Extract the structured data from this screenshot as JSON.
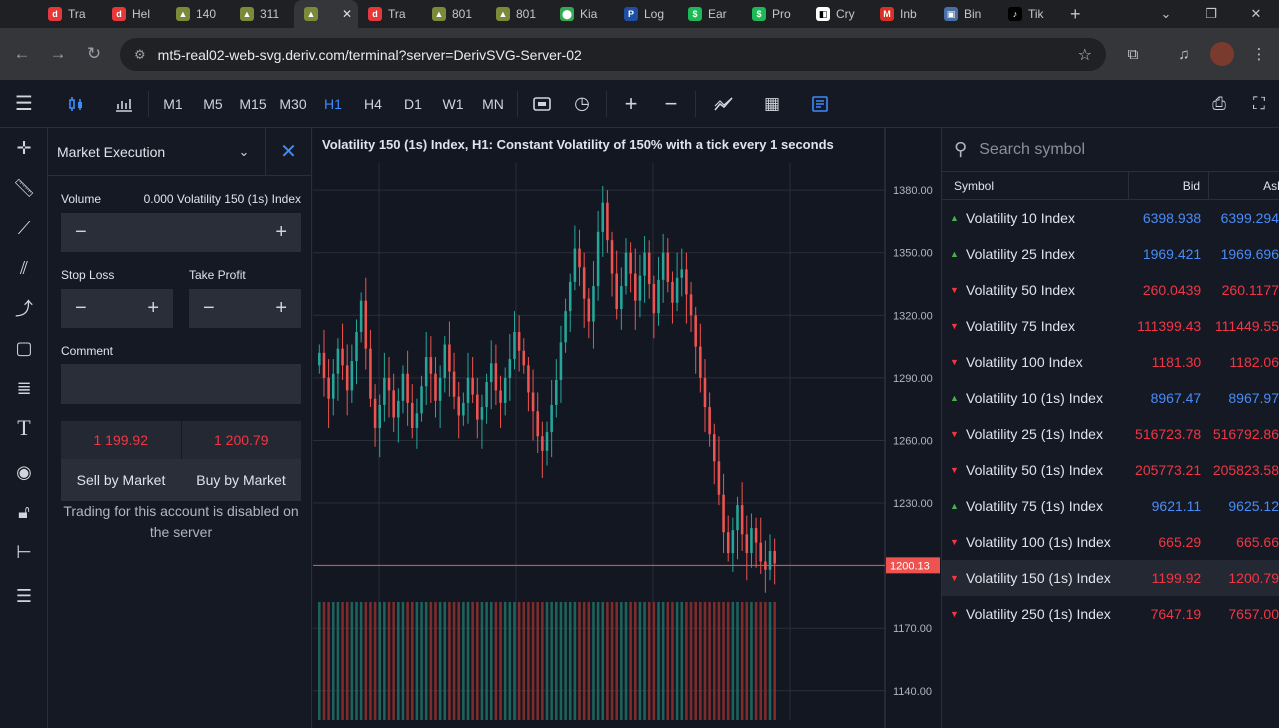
{
  "browser": {
    "tabs": [
      {
        "label": "Tra",
        "color": "#e5383b",
        "glyph": "d"
      },
      {
        "label": "Hel",
        "color": "#e5383b",
        "glyph": "d"
      },
      {
        "label": "140",
        "color": "#7a8a3a",
        "glyph": "▲"
      },
      {
        "label": "311",
        "color": "#7a8a3a",
        "glyph": "▲"
      },
      {
        "label": "",
        "color": "#7a8a3a",
        "glyph": "▲",
        "active": true
      },
      {
        "label": "Tra",
        "color": "#e5383b",
        "glyph": "d"
      },
      {
        "label": "801",
        "color": "#7a8a3a",
        "glyph": "▲"
      },
      {
        "label": "801",
        "color": "#7a8a3a",
        "glyph": "▲"
      },
      {
        "label": "Kia",
        "color": "#34a853",
        "glyph": "⬤"
      },
      {
        "label": "Log",
        "color": "#1e4fa3",
        "glyph": "P"
      },
      {
        "label": "Ear",
        "color": "#1db954",
        "glyph": "$"
      },
      {
        "label": "Pro",
        "color": "#1db954",
        "glyph": "$"
      },
      {
        "label": "Cry",
        "color": "#ffffff",
        "glyph": "◧"
      },
      {
        "label": "Inb",
        "color": "#d93025",
        "glyph": "M"
      },
      {
        "label": "Bin",
        "color": "#4a6fa5",
        "glyph": "▣"
      },
      {
        "label": "Tik",
        "color": "#000000",
        "glyph": "♪"
      }
    ],
    "url": "mt5-real02-web-svg.deriv.com/terminal?server=DerivSVG-Server-02"
  },
  "toolbar": {
    "timeframes": [
      "M1",
      "M5",
      "M15",
      "M30",
      "H1",
      "H4",
      "D1",
      "W1",
      "MN"
    ],
    "active_timeframe": "H1"
  },
  "order_panel": {
    "title": "Market Execution",
    "volume_label": "Volume",
    "volume_value": "0.000 Volatility 150 (1s) Index",
    "stop_loss_label": "Stop Loss",
    "take_profit_label": "Take Profit",
    "comment_label": "Comment",
    "sell_price": "1 199.92",
    "buy_price": "1 200.79",
    "sell_label": "Sell by Market",
    "buy_label": "Buy by Market",
    "disabled_message": "Trading for this account is disabled on the server"
  },
  "chart": {
    "title": "Volatility 150 (1s) Index, H1: Constant Volatility of 150% with a tick every 1 seconds",
    "current_price_label": "1200.13"
  },
  "chart_data": {
    "type": "candlestick",
    "title": "Volatility 150 (1s) Index, H1: Constant Volatility of 150% with a tick every 1 seconds",
    "ylim": [
      1126,
      1393
    ],
    "yticks": [
      "1380.00",
      "1350.00",
      "1320.00",
      "1290.00",
      "1260.00",
      "1230.00",
      "1200.00",
      "1170.00",
      "1140.00"
    ],
    "ytick_values": [
      1380,
      1350,
      1320,
      1290,
      1260,
      1230,
      1200,
      1170,
      1140
    ],
    "current_price": 1200.13,
    "closes": [
      1302,
      1290,
      1280,
      1292,
      1304,
      1296,
      1284,
      1298,
      1312,
      1327,
      1304,
      1280,
      1266,
      1277,
      1290,
      1284,
      1271,
      1279,
      1292,
      1278,
      1266,
      1273,
      1286,
      1300,
      1292,
      1279,
      1290,
      1306,
      1293,
      1281,
      1272,
      1278,
      1290,
      1282,
      1270,
      1276,
      1288,
      1297,
      1284,
      1278,
      1290,
      1299,
      1312,
      1303,
      1296,
      1283,
      1274,
      1262,
      1255,
      1264,
      1277,
      1289,
      1307,
      1322,
      1336,
      1352,
      1343,
      1328,
      1317,
      1334,
      1360,
      1374,
      1356,
      1340,
      1323,
      1334,
      1350,
      1340,
      1327,
      1339,
      1350,
      1335,
      1321,
      1337,
      1350,
      1336,
      1326,
      1338,
      1342,
      1330,
      1320,
      1305,
      1290,
      1276,
      1263,
      1250,
      1234,
      1216,
      1206,
      1217,
      1229,
      1215,
      1206,
      1218,
      1211,
      1202,
      1198,
      1207,
      1201
    ],
    "opens": [
      1296,
      1302,
      1290,
      1280,
      1292,
      1304,
      1296,
      1284,
      1298,
      1312,
      1327,
      1304,
      1280,
      1266,
      1277,
      1290,
      1284,
      1271,
      1279,
      1292,
      1278,
      1266,
      1273,
      1286,
      1300,
      1292,
      1279,
      1290,
      1306,
      1293,
      1281,
      1272,
      1278,
      1290,
      1282,
      1270,
      1276,
      1288,
      1297,
      1284,
      1278,
      1290,
      1299,
      1312,
      1303,
      1296,
      1283,
      1274,
      1262,
      1255,
      1264,
      1277,
      1289,
      1307,
      1322,
      1336,
      1352,
      1343,
      1328,
      1317,
      1334,
      1360,
      1374,
      1356,
      1340,
      1323,
      1334,
      1350,
      1340,
      1327,
      1339,
      1350,
      1335,
      1321,
      1337,
      1350,
      1336,
      1326,
      1338,
      1342,
      1330,
      1320,
      1305,
      1290,
      1276,
      1263,
      1250,
      1234,
      1216,
      1206,
      1217,
      1229,
      1215,
      1206,
      1218,
      1211,
      1202,
      1198,
      1207
    ],
    "volume_note": "tick volume histogram at bottom"
  },
  "watchlist": {
    "search_placeholder": "Search symbol",
    "headers": {
      "symbol": "Symbol",
      "bid": "Bid",
      "ask": "Ask"
    },
    "rows": [
      {
        "symbol": "Volatility 10 Index",
        "bid": "6398.938",
        "ask": "6399.294",
        "dir": "up"
      },
      {
        "symbol": "Volatility 25 Index",
        "bid": "1969.421",
        "ask": "1969.696",
        "dir": "up"
      },
      {
        "symbol": "Volatility 50 Index",
        "bid": "260.0439",
        "ask": "260.1177",
        "dir": "down"
      },
      {
        "symbol": "Volatility 75 Index",
        "bid": "111399.43",
        "ask": "111449.55",
        "dir": "down"
      },
      {
        "symbol": "Volatility 100 Index",
        "bid": "1181.30",
        "ask": "1182.06",
        "dir": "down"
      },
      {
        "symbol": "Volatility 10 (1s) Index",
        "bid": "8967.47",
        "ask": "8967.97",
        "dir": "up"
      },
      {
        "symbol": "Volatility 25 (1s) Index",
        "bid": "516723.78",
        "ask": "516792.86",
        "dir": "down"
      },
      {
        "symbol": "Volatility 50 (1s) Index",
        "bid": "205773.21",
        "ask": "205823.58",
        "dir": "down"
      },
      {
        "symbol": "Volatility 75 (1s) Index",
        "bid": "9621.11",
        "ask": "9625.12",
        "dir": "up"
      },
      {
        "symbol": "Volatility 100 (1s) Index",
        "bid": "665.29",
        "ask": "665.66",
        "dir": "down"
      },
      {
        "symbol": "Volatility 150 (1s) Index",
        "bid": "1199.92",
        "ask": "1200.79",
        "dir": "down",
        "selected": true
      },
      {
        "symbol": "Volatility 250 (1s) Index",
        "bid": "7647.19",
        "ask": "7657.00",
        "dir": "down"
      }
    ]
  }
}
